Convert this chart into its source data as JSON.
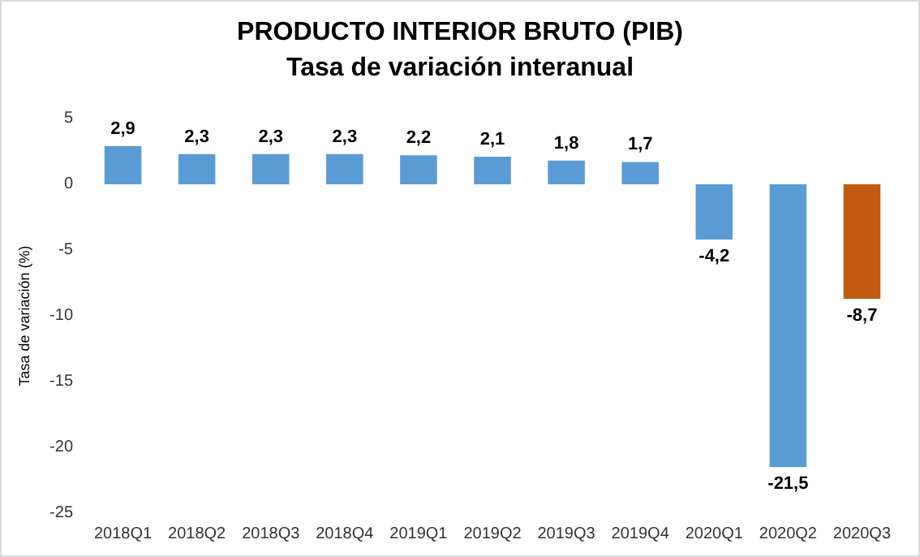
{
  "chart_data": {
    "type": "bar",
    "title": "PRODUCTO INTERIOR BRUTO (PIB)",
    "subtitle": "Tasa de variación interanual",
    "ylabel": "Tasa de variación (%)",
    "categories": [
      "2018Q1",
      "2018Q2",
      "2018Q3",
      "2018Q4",
      "2019Q1",
      "2019Q2",
      "2019Q3",
      "2019Q4",
      "2020Q1",
      "2020Q2",
      "2020Q3"
    ],
    "values": [
      2.9,
      2.3,
      2.3,
      2.3,
      2.2,
      2.1,
      1.8,
      1.7,
      -4.2,
      -21.5,
      -8.7
    ],
    "colors": [
      "#5b9bd5",
      "#5b9bd5",
      "#5b9bd5",
      "#5b9bd5",
      "#5b9bd5",
      "#5b9bd5",
      "#5b9bd5",
      "#5b9bd5",
      "#5b9bd5",
      "#5b9bd5",
      "#c55a11"
    ],
    "value_labels": [
      "2,9",
      "2,3",
      "2,3",
      "2,3",
      "2,2",
      "2,1",
      "1,8",
      "1,7",
      "-4,2",
      "-21,5",
      "-8,7"
    ],
    "ylim": [
      -25,
      5
    ],
    "yticks": [
      -25,
      -20,
      -15,
      -10,
      -5,
      0,
      5
    ]
  }
}
